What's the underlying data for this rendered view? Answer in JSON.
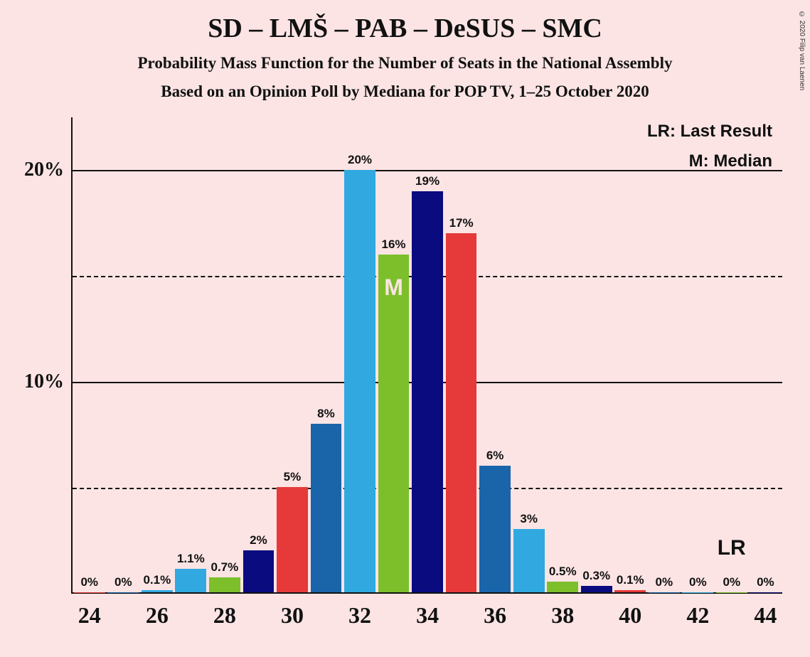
{
  "title": {
    "text": "SD – LMŠ – PAB – DeSUS – SMC",
    "fontsize": 38
  },
  "subtitle1": {
    "text": "Probability Mass Function for the Number of Seats in the National Assembly",
    "fontsize": 23
  },
  "subtitle2": {
    "text": "Based on an Opinion Poll by Mediana for POP TV, 1–25 October 2020",
    "fontsize": 23
  },
  "copyright": "© 2020 Filip van Laenen",
  "legend_lr": "LR: Last Result",
  "legend_m": "M: Median",
  "lr_label": "LR",
  "chart": {
    "type": "bar",
    "background_color": "#fce4e4",
    "axis_color": "#111111",
    "grid_solid_color": "#111111",
    "grid_dash_color": "#111111",
    "y_max": 22.5,
    "y_ticks": [
      10,
      20
    ],
    "y_minor": [
      5,
      15
    ],
    "x_min": 24,
    "x_max": 44,
    "x_tick_step": 2,
    "bar_colors": [
      "#e63939",
      "#1a64aa",
      "#31a9e0",
      "#7cbf2b",
      "#0b0b80"
    ],
    "bars": [
      {
        "x": 24,
        "v": 0,
        "label": "0%",
        "ci": 0
      },
      {
        "x": 25,
        "v": 0,
        "label": "0%",
        "ci": 1
      },
      {
        "x": 26,
        "v": 0.1,
        "label": "0.1%",
        "ci": 2
      },
      {
        "x": 27,
        "v": 1.1,
        "label": "1.1%",
        "ci": 2
      },
      {
        "x": 28,
        "v": 0.7,
        "label": "0.7%",
        "ci": 3
      },
      {
        "x": 29,
        "v": 2,
        "label": "2%",
        "ci": 4
      },
      {
        "x": 30,
        "v": 5,
        "label": "5%",
        "ci": 0
      },
      {
        "x": 31,
        "v": 8,
        "label": "8%",
        "ci": 1
      },
      {
        "x": 32,
        "v": 20,
        "label": "20%",
        "ci": 2
      },
      {
        "x": 33,
        "v": 16,
        "label": "16%",
        "ci": 3,
        "median": true
      },
      {
        "x": 34,
        "v": 19,
        "label": "19%",
        "ci": 4
      },
      {
        "x": 35,
        "v": 17,
        "label": "17%",
        "ci": 0
      },
      {
        "x": 36,
        "v": 6,
        "label": "6%",
        "ci": 1
      },
      {
        "x": 37,
        "v": 3,
        "label": "3%",
        "ci": 2
      },
      {
        "x": 38,
        "v": 0.5,
        "label": "0.5%",
        "ci": 3
      },
      {
        "x": 39,
        "v": 0.3,
        "label": "0.3%",
        "ci": 4
      },
      {
        "x": 40,
        "v": 0.1,
        "label": "0.1%",
        "ci": 0
      },
      {
        "x": 41,
        "v": 0,
        "label": "0%",
        "ci": 1
      },
      {
        "x": 42,
        "v": 0,
        "label": "0%",
        "ci": 2
      },
      {
        "x": 43,
        "v": 0,
        "label": "0%",
        "ci": 3
      },
      {
        "x": 44,
        "v": 0,
        "label": "0%",
        "ci": 4
      }
    ],
    "lr_x": 43,
    "median_letter": "M"
  }
}
